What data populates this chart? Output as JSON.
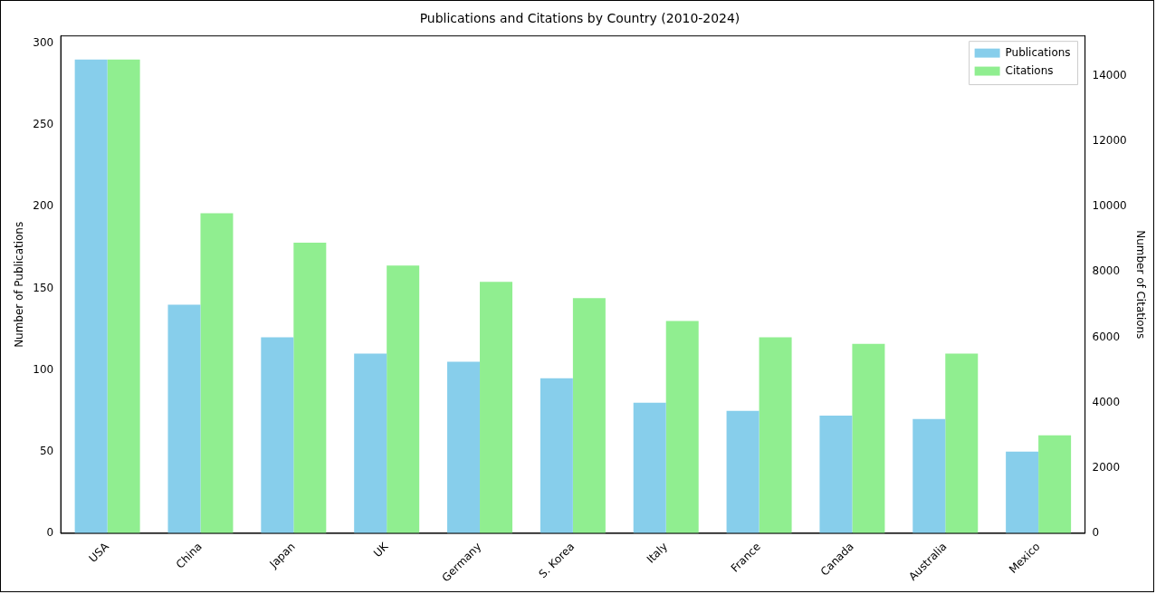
{
  "chart_data": {
    "type": "bar",
    "title": "Publications and Citations by Country (2010-2024)",
    "xlabel": null,
    "ylabel": "Number of Publications",
    "y2label": "Number of Citations",
    "categories": [
      "USA",
      "China",
      "Japan",
      "UK",
      "Germany",
      "S. Korea",
      "Italy",
      "France",
      "Canada",
      "Australia",
      "Mexico"
    ],
    "series": [
      {
        "name": "Publications",
        "color": "#87ceeb",
        "values": [
          290,
          140,
          120,
          110,
          105,
          95,
          80,
          75,
          72,
          70,
          50
        ]
      },
      {
        "name": "Citations",
        "color": "#90ee90",
        "axis": "y2",
        "values": [
          14500,
          9800,
          8900,
          8200,
          7700,
          7200,
          6500,
          6000,
          5800,
          5500,
          3000
        ]
      }
    ],
    "ylim": [
      0,
      304.5
    ],
    "yticks": [
      0,
      50,
      100,
      150,
      200,
      250,
      300
    ],
    "y2lim": [
      0,
      15225
    ],
    "y2ticks": [
      0,
      2000,
      4000,
      6000,
      8000,
      10000,
      12000,
      14000
    ],
    "legend": "top right",
    "grid": false
  }
}
